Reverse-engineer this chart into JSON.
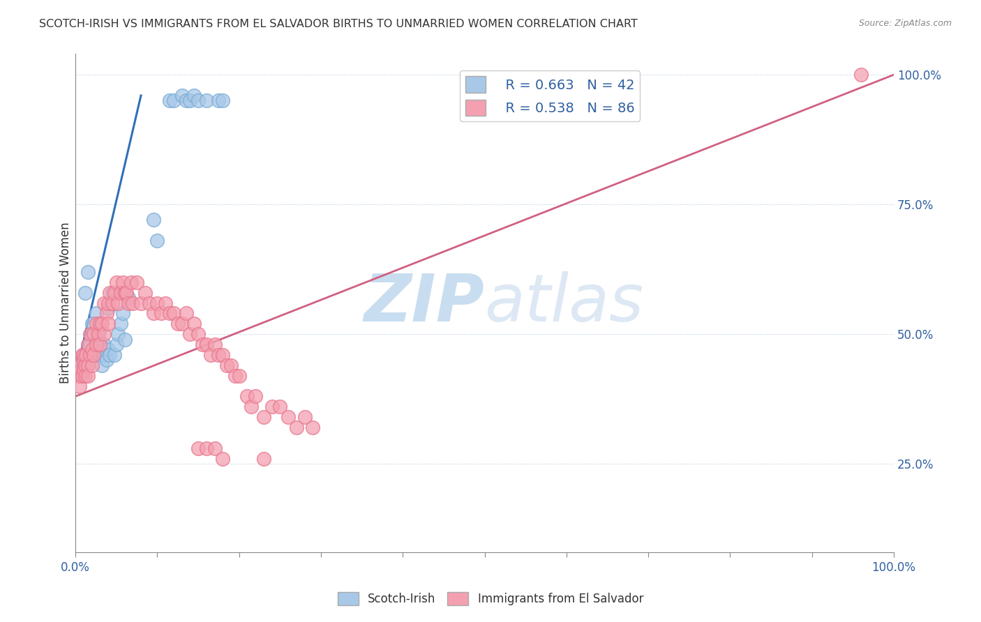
{
  "title": "SCOTCH-IRISH VS IMMIGRANTS FROM EL SALVADOR BIRTHS TO UNMARRIED WOMEN CORRELATION CHART",
  "source": "Source: ZipAtlas.com",
  "ylabel": "Births to Unmarried Women",
  "legend_blue_R": "0.663",
  "legend_blue_N": "42",
  "legend_pink_R": "0.538",
  "legend_pink_N": "86",
  "legend_label_blue": "Scotch-Irish",
  "legend_label_pink": "Immigrants from El Salvador",
  "blue_color": "#a8c8e8",
  "blue_edge_color": "#7aadd4",
  "pink_color": "#f4a0b0",
  "pink_edge_color": "#e87890",
  "line_blue_color": "#3070b8",
  "line_pink_color": "#d06080",
  "watermark_zip": "ZIP",
  "watermark_atlas": "atlas",
  "blue_x": [
    0.005,
    0.008,
    0.01,
    0.012,
    0.015,
    0.015,
    0.018,
    0.02,
    0.02,
    0.022,
    0.025,
    0.025,
    0.028,
    0.03,
    0.03,
    0.032,
    0.035,
    0.035,
    0.038,
    0.04,
    0.04,
    0.042,
    0.045,
    0.048,
    0.05,
    0.052,
    0.055,
    0.058,
    0.06,
    0.065,
    0.095,
    0.1,
    0.115,
    0.12,
    0.13,
    0.135,
    0.14,
    0.145,
    0.15,
    0.16,
    0.175,
    0.18
  ],
  "blue_y": [
    0.42,
    0.45,
    0.43,
    0.58,
    0.62,
    0.44,
    0.48,
    0.52,
    0.46,
    0.5,
    0.54,
    0.47,
    0.49,
    0.51,
    0.46,
    0.44,
    0.46,
    0.48,
    0.45,
    0.47,
    0.55,
    0.46,
    0.58,
    0.46,
    0.48,
    0.5,
    0.52,
    0.54,
    0.49,
    0.57,
    0.72,
    0.68,
    0.95,
    0.95,
    0.96,
    0.95,
    0.95,
    0.96,
    0.95,
    0.95,
    0.95,
    0.95
  ],
  "pink_x": [
    0.003,
    0.005,
    0.005,
    0.007,
    0.008,
    0.008,
    0.01,
    0.01,
    0.01,
    0.012,
    0.012,
    0.013,
    0.015,
    0.015,
    0.015,
    0.018,
    0.018,
    0.02,
    0.02,
    0.022,
    0.022,
    0.025,
    0.025,
    0.028,
    0.03,
    0.03,
    0.032,
    0.035,
    0.035,
    0.038,
    0.04,
    0.04,
    0.042,
    0.045,
    0.048,
    0.05,
    0.052,
    0.055,
    0.058,
    0.06,
    0.062,
    0.065,
    0.068,
    0.07,
    0.075,
    0.08,
    0.085,
    0.09,
    0.095,
    0.1,
    0.105,
    0.11,
    0.115,
    0.12,
    0.125,
    0.13,
    0.135,
    0.14,
    0.145,
    0.15,
    0.155,
    0.16,
    0.165,
    0.17,
    0.175,
    0.18,
    0.185,
    0.19,
    0.195,
    0.2,
    0.21,
    0.215,
    0.22,
    0.23,
    0.24,
    0.25,
    0.26,
    0.27,
    0.28,
    0.29,
    0.15,
    0.16,
    0.17,
    0.18,
    0.23,
    0.96
  ],
  "pink_y": [
    0.42,
    0.44,
    0.4,
    0.43,
    0.46,
    0.42,
    0.45,
    0.43,
    0.46,
    0.44,
    0.42,
    0.46,
    0.44,
    0.48,
    0.42,
    0.46,
    0.5,
    0.44,
    0.47,
    0.46,
    0.5,
    0.48,
    0.52,
    0.5,
    0.52,
    0.48,
    0.52,
    0.56,
    0.5,
    0.54,
    0.52,
    0.56,
    0.58,
    0.56,
    0.58,
    0.6,
    0.56,
    0.58,
    0.6,
    0.58,
    0.58,
    0.56,
    0.6,
    0.56,
    0.6,
    0.56,
    0.58,
    0.56,
    0.54,
    0.56,
    0.54,
    0.56,
    0.54,
    0.54,
    0.52,
    0.52,
    0.54,
    0.5,
    0.52,
    0.5,
    0.48,
    0.48,
    0.46,
    0.48,
    0.46,
    0.46,
    0.44,
    0.44,
    0.42,
    0.42,
    0.38,
    0.36,
    0.38,
    0.34,
    0.36,
    0.36,
    0.34,
    0.32,
    0.34,
    0.32,
    0.28,
    0.28,
    0.28,
    0.26,
    0.26,
    1.0
  ],
  "blue_line": [
    [
      0.0,
      0.08
    ],
    [
      0.42,
      0.96
    ]
  ],
  "pink_line": [
    [
      0.0,
      1.0
    ],
    [
      0.38,
      1.0
    ]
  ],
  "xlim": [
    0.0,
    1.0
  ],
  "ylim": [
    0.08,
    1.04
  ],
  "yticks": [
    0.25,
    0.5,
    0.75,
    1.0
  ],
  "ytick_labels": [
    "25.0%",
    "50.0%",
    "75.0%",
    "100.0%"
  ],
  "xticks": [
    0.0,
    0.1,
    0.2,
    0.3,
    0.4,
    0.5,
    0.6,
    0.7,
    0.8,
    0.9,
    1.0
  ],
  "xtick_labels_show": {
    "0.0": "0.0%",
    "1.0": "100.0%"
  }
}
